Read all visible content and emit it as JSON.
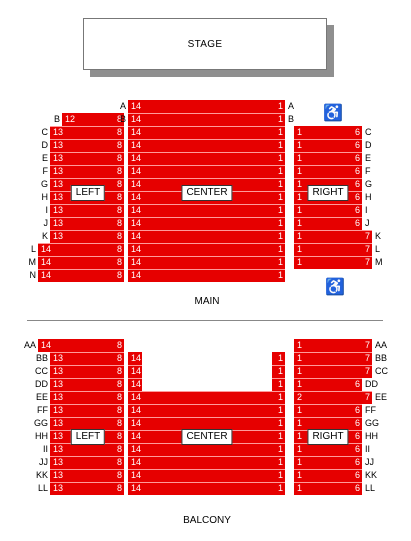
{
  "stage": "STAGE",
  "wheelchair_icon": "♿",
  "sections": [
    {
      "name": "main-left",
      "label": "LEFT",
      "rows": [
        {
          "row": "B",
          "low": "8",
          "high": "12",
          "y": 120,
          "left": 62,
          "right": 124
        },
        {
          "row": "C",
          "low": "8",
          "high": "13",
          "y": 133,
          "left": 50,
          "right": 124
        },
        {
          "row": "D",
          "low": "8",
          "high": "13",
          "y": 146,
          "left": 50,
          "right": 124
        },
        {
          "row": "E",
          "low": "8",
          "high": "13",
          "y": 159,
          "left": 50,
          "right": 124
        },
        {
          "row": "F",
          "low": "8",
          "high": "13",
          "y": 172,
          "left": 50,
          "right": 124
        },
        {
          "row": "G",
          "low": "8",
          "high": "13",
          "y": 185,
          "left": 50,
          "right": 124
        },
        {
          "row": "H",
          "low": "8",
          "high": "13",
          "y": 198,
          "left": 50,
          "right": 124
        },
        {
          "row": "I",
          "low": "8",
          "high": "13",
          "y": 211,
          "left": 50,
          "right": 124
        },
        {
          "row": "J",
          "low": "8",
          "high": "13",
          "y": 224,
          "left": 50,
          "right": 124
        },
        {
          "row": "K",
          "low": "8",
          "high": "13",
          "y": 237,
          "left": 50,
          "right": 124
        },
        {
          "row": "L",
          "low": "8",
          "high": "14",
          "y": 250,
          "left": 38,
          "right": 124
        },
        {
          "row": "M",
          "low": "8",
          "high": "14",
          "y": 263,
          "left": 38,
          "right": 124
        },
        {
          "row": "N",
          "low": "8",
          "high": "14",
          "y": 276,
          "left": 38,
          "right": 124
        }
      ]
    }
  ],
  "main": {
    "title": "MAIN",
    "left_label": "LEFT",
    "center_label": "CENTER",
    "right_label": "RIGHT",
    "left_rows": [
      {
        "row": "B",
        "high": "12",
        "low": "8"
      },
      {
        "row": "C",
        "high": "13",
        "low": "8"
      },
      {
        "row": "D",
        "high": "13",
        "low": "8"
      },
      {
        "row": "E",
        "high": "13",
        "low": "8"
      },
      {
        "row": "F",
        "high": "13",
        "low": "8"
      },
      {
        "row": "G",
        "high": "13",
        "low": "8"
      },
      {
        "row": "H",
        "high": "13",
        "low": "8"
      },
      {
        "row": "I",
        "high": "13",
        "low": "8"
      },
      {
        "row": "J",
        "high": "13",
        "low": "8"
      },
      {
        "row": "K",
        "high": "13",
        "low": "8"
      },
      {
        "row": "L",
        "high": "14",
        "low": "8"
      },
      {
        "row": "M",
        "high": "14",
        "low": "8"
      },
      {
        "row": "N",
        "high": "14",
        "low": "8"
      }
    ],
    "center_rows": [
      {
        "row": "A",
        "high": "14",
        "low": "1"
      },
      {
        "row": "B",
        "high": "14",
        "low": "1"
      },
      {
        "row": "C",
        "high": "14",
        "low": "1"
      },
      {
        "row": "D",
        "high": "14",
        "low": "1"
      },
      {
        "row": "E",
        "high": "14",
        "low": "1"
      },
      {
        "row": "F",
        "high": "14",
        "low": "1"
      },
      {
        "row": "G",
        "high": "14",
        "low": "1"
      },
      {
        "row": "H",
        "high": "14",
        "low": "1"
      },
      {
        "row": "I",
        "high": "14",
        "low": "1"
      },
      {
        "row": "J",
        "high": "14",
        "low": "1"
      },
      {
        "row": "K",
        "high": "14",
        "low": "1"
      },
      {
        "row": "L",
        "high": "14",
        "low": "1"
      },
      {
        "row": "M",
        "high": "14",
        "low": "1"
      },
      {
        "row": "N",
        "high": "14",
        "low": "1"
      }
    ],
    "right_rows": [
      {
        "row": "C",
        "low": "1",
        "high": "6"
      },
      {
        "row": "D",
        "low": "1",
        "high": "6"
      },
      {
        "row": "E",
        "low": "1",
        "high": "6"
      },
      {
        "row": "F",
        "low": "1",
        "high": "6"
      },
      {
        "row": "G",
        "low": "1",
        "high": "6"
      },
      {
        "row": "H",
        "low": "1",
        "high": "6"
      },
      {
        "row": "I",
        "low": "1",
        "high": "6"
      },
      {
        "row": "J",
        "low": "1",
        "high": "6"
      },
      {
        "row": "K",
        "low": "1",
        "high": "7"
      },
      {
        "row": "L",
        "low": "1",
        "high": "7"
      },
      {
        "row": "M",
        "low": "1",
        "high": "7"
      }
    ]
  },
  "balcony": {
    "title": "BALCONY",
    "left_label": "LEFT",
    "center_label": "CENTER",
    "right_label": "RIGHT",
    "left_rows": [
      {
        "row": "AA",
        "high": "14",
        "low": "8"
      },
      {
        "row": "BB",
        "high": "13",
        "low": "8"
      },
      {
        "row": "CC",
        "high": "13",
        "low": "8"
      },
      {
        "row": "DD",
        "high": "13",
        "low": "8"
      },
      {
        "row": "EE",
        "high": "13",
        "low": "8"
      },
      {
        "row": "FF",
        "high": "13",
        "low": "8"
      },
      {
        "row": "GG",
        "high": "13",
        "low": "8"
      },
      {
        "row": "HH",
        "high": "13",
        "low": "8"
      },
      {
        "row": "II",
        "high": "13",
        "low": "8"
      },
      {
        "row": "JJ",
        "high": "13",
        "low": "8"
      },
      {
        "row": "KK",
        "high": "13",
        "low": "8"
      },
      {
        "row": "LL",
        "high": "13",
        "low": "8"
      }
    ],
    "center_rows": [
      {
        "row": "BB",
        "high": "14",
        "low": "1"
      },
      {
        "row": "CC",
        "high": "14",
        "low": "1"
      },
      {
        "row": "DD",
        "high": "14",
        "low": "1"
      },
      {
        "row": "EE",
        "high": "14",
        "low": "1"
      },
      {
        "row": "FF",
        "high": "14",
        "low": "1"
      },
      {
        "row": "GG",
        "high": "14",
        "low": "1"
      },
      {
        "row": "HH",
        "high": "14",
        "low": "1"
      },
      {
        "row": "II",
        "high": "14",
        "low": "1"
      },
      {
        "row": "JJ",
        "high": "14",
        "low": "1"
      },
      {
        "row": "KK",
        "high": "14",
        "low": "1"
      },
      {
        "row": "LL",
        "high": "14",
        "low": "1"
      }
    ],
    "right_rows": [
      {
        "row": "AA",
        "low": "1",
        "high": "7"
      },
      {
        "row": "BB",
        "low": "1",
        "high": "7"
      },
      {
        "row": "CC",
        "low": "1",
        "high": "7"
      },
      {
        "row": "DD",
        "low": "1",
        "high": "6"
      },
      {
        "row": "EE",
        "low": "2",
        "high": "7"
      },
      {
        "row": "FF",
        "low": "1",
        "high": "6"
      },
      {
        "row": "GG",
        "low": "1",
        "high": "6"
      },
      {
        "row": "HH",
        "low": "1",
        "high": "6"
      },
      {
        "row": "II",
        "low": "1",
        "high": "6"
      },
      {
        "row": "JJ",
        "low": "1",
        "high": "6"
      },
      {
        "row": "KK",
        "low": "1",
        "high": "6"
      },
      {
        "row": "LL",
        "low": "1",
        "high": "6"
      }
    ]
  },
  "colors": {
    "section": "#e60000",
    "row_line": "#ff9a9a",
    "seat_number": "#ffffff"
  }
}
